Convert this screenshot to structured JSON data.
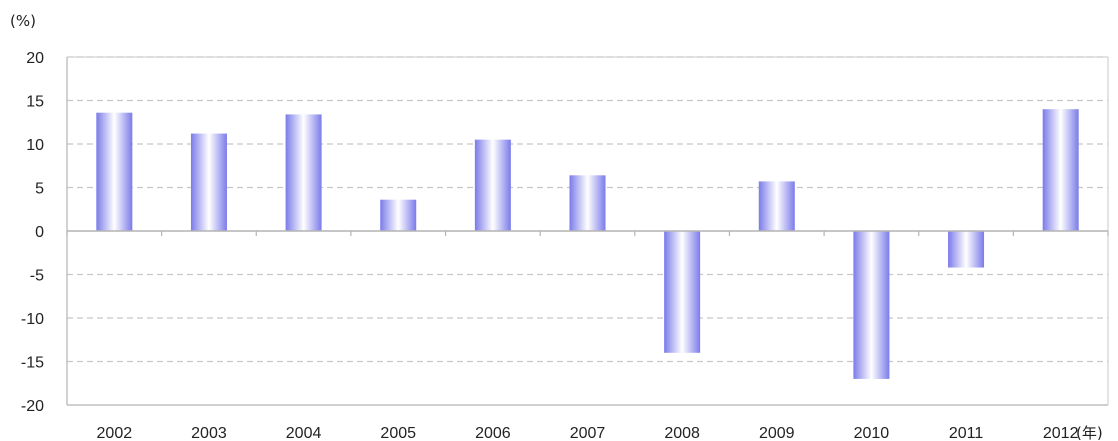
{
  "chart_data": {
    "type": "bar",
    "categories": [
      "2002",
      "2003",
      "2004",
      "2005",
      "2006",
      "2007",
      "2008",
      "2009",
      "2010",
      "2011",
      "2012"
    ],
    "values": [
      13.6,
      11.2,
      13.4,
      3.6,
      10.5,
      6.4,
      -14.0,
      5.7,
      -17.0,
      -4.2,
      14.0
    ],
    "title": "",
    "xlabel": "(年)",
    "ylabel": "(%)",
    "ylim": [
      -20,
      20
    ],
    "yticks": [
      20,
      15,
      10,
      5,
      0,
      -5,
      -10,
      -15,
      -20
    ],
    "grid": true,
    "grid_style": "dashed",
    "legend": "none",
    "colors": {
      "bar_edge": "#7b7bea",
      "bar_center": "#ffffff",
      "grid": "#c8c8c8",
      "axis": "#b4b4b4"
    }
  }
}
